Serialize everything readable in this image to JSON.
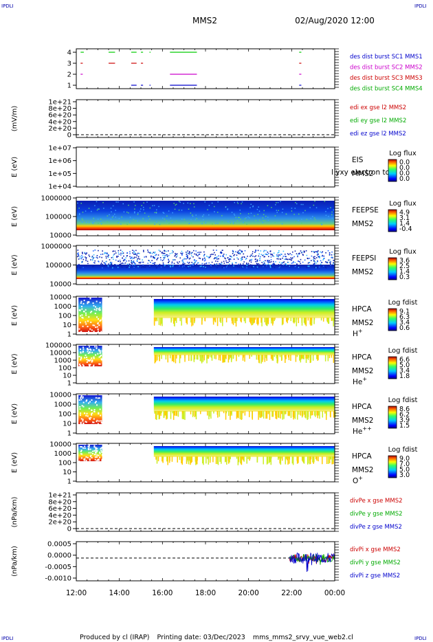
{
  "corner_logo": "IPDLI",
  "header": {
    "spacecraft": "MMS2",
    "datetime": "02/Aug/2020 12:00"
  },
  "footer": {
    "produced_by": "Produced by cl (IRAP)",
    "printing_date": "Printing date: 03/Dec/2023",
    "script_name": "mms_mms2_srvy_vue_web2.cl"
  },
  "chart_data": {
    "type": "multi-panel time series",
    "x_ticks": [
      "12:00",
      "14:00",
      "16:00",
      "18:00",
      "20:00",
      "22:00",
      "00:00"
    ],
    "x_range_hours": [
      12,
      24
    ],
    "panels": [
      {
        "id": "burst",
        "type": "timeline",
        "y_ticks": [
          "4",
          "3",
          "2",
          "1"
        ],
        "legend": [
          {
            "text": "des dist burst SC1 MMS1",
            "color": "#0000cc"
          },
          {
            "text": "des dist burst SC2 MMS2",
            "color": "#cc00cc"
          },
          {
            "text": "des dist burst SC3 MMS3",
            "color": "#cc0000"
          },
          {
            "text": "des dist burst SC4 MMS4",
            "color": "#00aa00"
          }
        ],
        "bars": [
          {
            "level": 4,
            "color": "#00cc00",
            "intervals": [
              [
                12.2,
                12.35
              ],
              [
                13.5,
                13.8
              ],
              [
                14.55,
                14.8
              ],
              [
                15.0,
                15.1
              ],
              [
                15.4,
                15.45
              ],
              [
                16.35,
                17.6
              ],
              [
                22.35,
                22.45
              ]
            ]
          },
          {
            "level": 3,
            "color": "#cc0000",
            "intervals": [
              [
                12.2,
                12.3
              ],
              [
                13.5,
                13.8
              ],
              [
                14.55,
                14.8
              ],
              [
                15.0,
                15.1
              ],
              [
                22.35,
                22.45
              ]
            ]
          },
          {
            "level": 2,
            "color": "#cc00cc",
            "intervals": [
              [
                12.2,
                12.3
              ],
              [
                16.35,
                17.6
              ],
              [
                22.35,
                22.45
              ]
            ]
          },
          {
            "level": 1,
            "color": "#0000cc",
            "intervals": [
              [
                14.55,
                14.8
              ],
              [
                15.0,
                15.1
              ],
              [
                15.4,
                15.45
              ],
              [
                16.35,
                17.6
              ],
              [
                22.35,
                22.45
              ]
            ]
          }
        ]
      },
      {
        "id": "edi",
        "type": "line",
        "ylabel": "(mV/m)",
        "y_ticks": [
          "1e+21",
          "8e+20",
          "6e+20",
          "4e+20",
          "2e+20",
          "0"
        ],
        "legend": [
          {
            "text": "edi ex gse l2 MMS2",
            "color": "#cc0000"
          },
          {
            "text": "edi ey gse l2 MMS2",
            "color": "#00aa00"
          },
          {
            "text": "edi ez gse l2 MMS2",
            "color": "#0000cc"
          }
        ]
      },
      {
        "id": "eis",
        "type": "spectrogram",
        "ylabel": "E (eV)",
        "y_ticks": [
          "1e+07",
          "1e+06",
          "1e+05",
          "1e+04"
        ],
        "labels": [
          "EIS",
          "MMS2"
        ],
        "overlap_text": "l yxy electron to",
        "cbar_title": "Log flux",
        "cbar_ticks": [
          "0.0",
          "0.0",
          "0.0",
          "0.0"
        ]
      },
      {
        "id": "feepse",
        "type": "spectrogram",
        "ylabel": "E (eV)",
        "y_ticks": [
          "1000000",
          "100000",
          "10000"
        ],
        "labels": [
          "FEEPSE",
          "MMS2"
        ],
        "cbar_title": "Log flux",
        "cbar_ticks": [
          "4.9",
          "3.1",
          "1.4",
          "-0.4"
        ]
      },
      {
        "id": "feepsi",
        "type": "spectrogram",
        "ylabel": "E (eV)",
        "y_ticks": [
          "1000000",
          "100000",
          "10000"
        ],
        "labels": [
          "FEEPSI",
          "MMS2"
        ],
        "cbar_title": "Log flux",
        "cbar_ticks": [
          "3.6",
          "2.5",
          "1.4",
          "0.3"
        ]
      },
      {
        "id": "hpca_h",
        "type": "spectrogram",
        "ylabel": "E (eV)",
        "y_ticks": [
          "10000",
          "1000",
          "100",
          "10",
          "1"
        ],
        "labels": [
          "HPCA",
          "MMS2"
        ],
        "species": "H",
        "species_sup": "+",
        "cbar_title": "Log fdist",
        "cbar_ticks": [
          "9.1",
          "6.3",
          "3.4",
          "0.6"
        ]
      },
      {
        "id": "hpca_he",
        "type": "spectrogram",
        "ylabel": "E (eV)",
        "y_ticks": [
          "100000",
          "10000",
          "1000",
          "100",
          "10",
          "1"
        ],
        "labels": [
          "HPCA",
          "MMS2"
        ],
        "species": "He",
        "species_sup": "+",
        "cbar_title": "Log fdist",
        "cbar_ticks": [
          "6.6",
          "5.0",
          "3.4",
          "1.8"
        ]
      },
      {
        "id": "hpca_he2",
        "type": "spectrogram",
        "ylabel": "E (eV)",
        "y_ticks": [
          "10000",
          "1000",
          "100",
          "10",
          "1"
        ],
        "labels": [
          "HPCA",
          "MMS2"
        ],
        "species": "He",
        "species_sup": "++",
        "cbar_title": "Log fdist",
        "cbar_ticks": [
          "8.6",
          "6.2",
          "3.9",
          "1.5"
        ]
      },
      {
        "id": "hpca_o",
        "type": "spectrogram",
        "ylabel": "E (eV)",
        "y_ticks": [
          "10000",
          "1000",
          "100",
          "10",
          "1"
        ],
        "labels": [
          "HPCA",
          "MMS2"
        ],
        "species": "O",
        "species_sup": "+",
        "cbar_title": "Log fdist",
        "cbar_ticks": [
          "9.0",
          "7.0",
          "5.0",
          "3.0"
        ]
      },
      {
        "id": "divpe",
        "type": "line",
        "ylabel": "(nPa/km)",
        "y_ticks": [
          "1e+21",
          "8e+20",
          "6e+20",
          "4e+20",
          "2e+20",
          "0"
        ],
        "legend": [
          {
            "text": "divPe x gse MMS2",
            "color": "#cc0000"
          },
          {
            "text": "divPe y gse MMS2",
            "color": "#00aa00"
          },
          {
            "text": "divPe z gse MMS2",
            "color": "#0000cc"
          }
        ]
      },
      {
        "id": "divpi",
        "type": "line",
        "ylabel": "(nPa/km)",
        "y_ticks": [
          "0.0005",
          "0.0000",
          "-0.0005",
          "-0.0010"
        ],
        "y_range": [
          -0.00125,
          0.0009
        ],
        "legend": [
          {
            "text": "divPi x gse MMS2",
            "color": "#cc0000"
          },
          {
            "text": "divPi y gse MMS2",
            "color": "#00aa00"
          },
          {
            "text": "divPi z gse MMS2",
            "color": "#0000cc"
          }
        ],
        "data_interval_hours": [
          21.9,
          24.0
        ]
      }
    ]
  }
}
